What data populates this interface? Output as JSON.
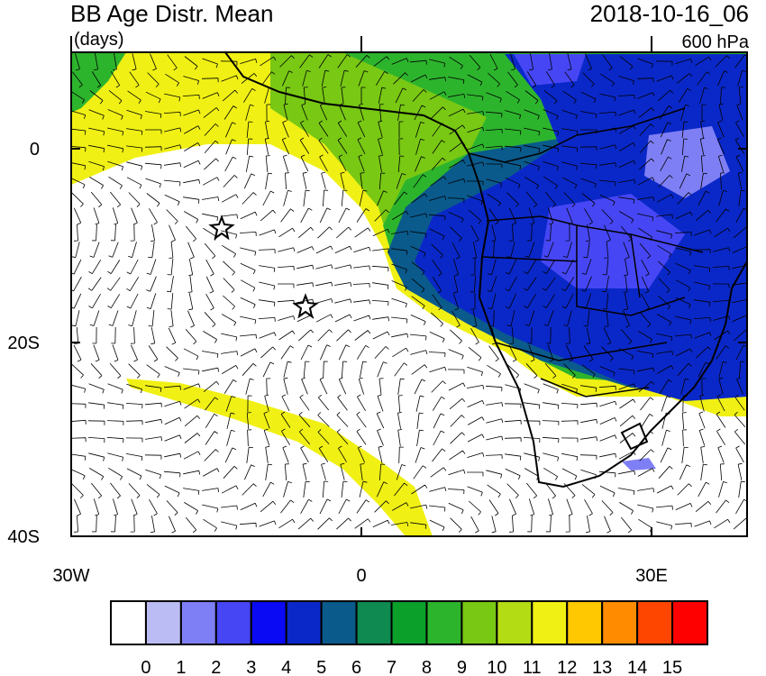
{
  "header": {
    "title": "BB Age Distr. Mean",
    "units": "(days)",
    "date": "2018-10-16_06",
    "level": "600 hPa"
  },
  "map": {
    "y_labels": [
      "0",
      "20S",
      "40S"
    ],
    "x_labels": [
      "30W",
      "0",
      "30E"
    ]
  },
  "colorbar": {
    "labels": [
      0,
      1,
      2,
      3,
      4,
      5,
      6,
      7,
      8,
      9,
      10,
      11,
      12,
      13,
      14,
      15
    ],
    "colors": [
      "#ffffff",
      "#bcbcf5",
      "#7f7ff5",
      "#4646f5",
      "#0a0af5",
      "#0a28c8",
      "#0a5a8c",
      "#0f8a50",
      "#0aa02a",
      "#2db42d",
      "#78c814",
      "#b4dc14",
      "#f0f014",
      "#ffc800",
      "#ff8c00",
      "#ff4600",
      "#ff0000"
    ]
  }
}
